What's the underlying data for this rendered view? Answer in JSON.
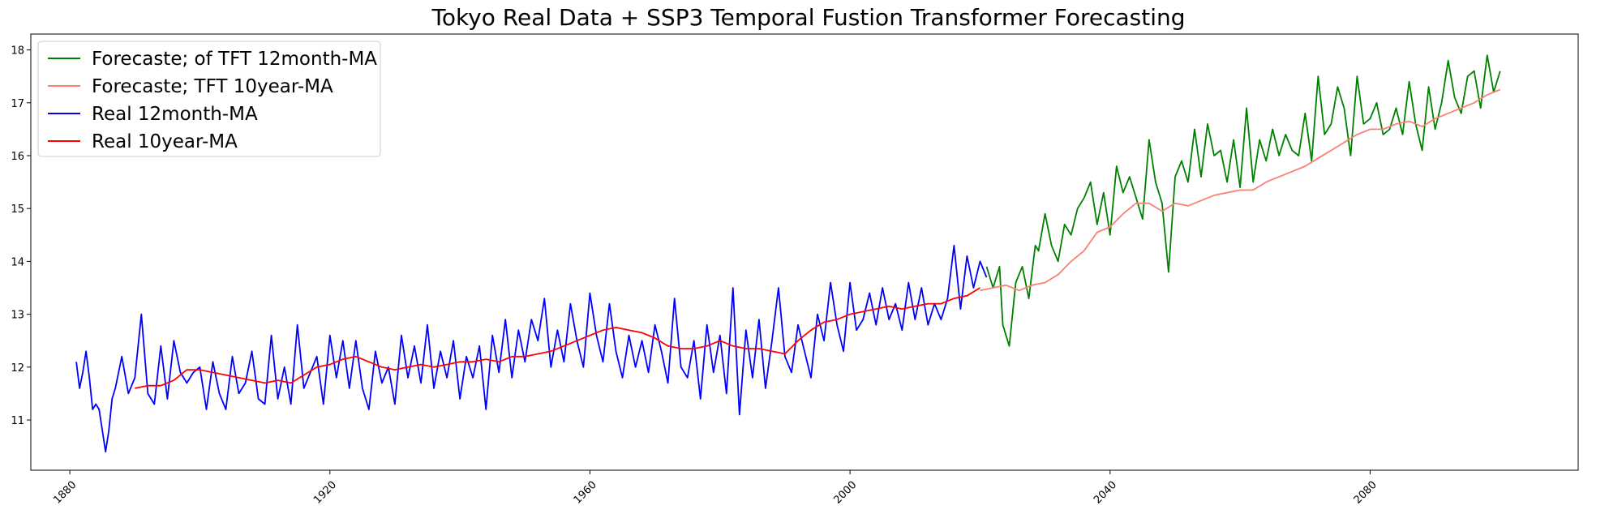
{
  "chart_data": {
    "type": "line",
    "title": "Tokyo Real Data + SSP3 Temporal Fustion Transformer Forecasting",
    "xlabel": "",
    "ylabel": "",
    "xlim": [
      1874,
      2112
    ],
    "ylim": [
      10.05,
      18.3
    ],
    "x_ticks": [
      1880,
      1920,
      1960,
      2000,
      2040,
      2080
    ],
    "x_tick_labels": [
      "1880",
      "1920",
      "1960",
      "2000",
      "2040",
      "2080"
    ],
    "y_ticks": [
      11,
      12,
      13,
      14,
      15,
      16,
      17,
      18
    ],
    "y_tick_labels": [
      "11",
      "12",
      "13",
      "14",
      "15",
      "16",
      "17",
      "18"
    ],
    "grid": false,
    "legend_position": "upper-left",
    "series": [
      {
        "name": "Forecaste; of TFT 12month-MA",
        "color": "#008000",
        "x": [
          2021.0,
          2022.0,
          2023.0,
          2023.5,
          2024.5,
          2025.5,
          2026.5,
          2027.5,
          2028.5,
          2029.0,
          2030.0,
          2031.0,
          2032.0,
          2033.0,
          2034.0,
          2035.0,
          2036.0,
          2037.0,
          2038.0,
          2039.0,
          2040.0,
          2041.0,
          2042.0,
          2043.0,
          2044.0,
          2045.0,
          2046.0,
          2047.0,
          2048.0,
          2049.0,
          2050.0,
          2051.0,
          2052.0,
          2053.0,
          2054.0,
          2055.0,
          2056.0,
          2057.0,
          2058.0,
          2059.0,
          2060.0,
          2061.0,
          2062.0,
          2063.0,
          2064.0,
          2065.0,
          2066.0,
          2067.0,
          2068.0,
          2069.0,
          2070.0,
          2071.0,
          2072.0,
          2073.0,
          2074.0,
          2075.0,
          2076.0,
          2077.0,
          2078.0,
          2079.0,
          2080.0,
          2081.0,
          2082.0,
          2083.0,
          2084.0,
          2085.0,
          2086.0,
          2087.0,
          2088.0,
          2089.0,
          2090.0,
          2091.0,
          2092.0,
          2093.0,
          2094.0,
          2095.0,
          2096.0,
          2097.0,
          2098.0,
          2099.0,
          2100.0
        ],
        "y": [
          13.9,
          13.5,
          13.9,
          12.8,
          12.4,
          13.6,
          13.9,
          13.3,
          14.3,
          14.2,
          14.9,
          14.3,
          14.0,
          14.7,
          14.5,
          15.0,
          15.2,
          15.5,
          14.7,
          15.3,
          14.5,
          15.8,
          15.3,
          15.6,
          15.2,
          14.8,
          16.3,
          15.5,
          15.1,
          13.8,
          15.6,
          15.9,
          15.5,
          16.5,
          15.6,
          16.6,
          16.0,
          16.1,
          15.5,
          16.3,
          15.4,
          16.9,
          15.5,
          16.3,
          15.9,
          16.5,
          16.0,
          16.4,
          16.1,
          16.0,
          16.8,
          15.9,
          17.5,
          16.4,
          16.6,
          17.3,
          16.9,
          16.0,
          17.5,
          16.6,
          16.7,
          17.0,
          16.4,
          16.5,
          16.9,
          16.4,
          17.4,
          16.6,
          16.1,
          17.3,
          16.5,
          17.0,
          17.8,
          17.1,
          16.8,
          17.5,
          17.6,
          16.9,
          17.9,
          17.2,
          17.6
        ]
      },
      {
        "name": "Forecaste; TFT 10year-MA",
        "color": "#fa8072",
        "x": [
          2020.0,
          2022.0,
          2024.0,
          2026.0,
          2028.0,
          2030.0,
          2032.0,
          2034.0,
          2036.0,
          2038.0,
          2040.0,
          2042.0,
          2044.0,
          2046.0,
          2048.0,
          2050.0,
          2052.0,
          2054.0,
          2056.0,
          2058.0,
          2060.0,
          2062.0,
          2064.0,
          2066.0,
          2068.0,
          2070.0,
          2072.0,
          2074.0,
          2076.0,
          2078.0,
          2080.0,
          2082.0,
          2084.0,
          2086.0,
          2088.0,
          2090.0,
          2092.0,
          2094.0,
          2096.0,
          2098.0,
          2100.0
        ],
        "y": [
          13.45,
          13.5,
          13.55,
          13.45,
          13.55,
          13.6,
          13.75,
          14.0,
          14.2,
          14.55,
          14.65,
          14.9,
          15.1,
          15.1,
          14.95,
          15.1,
          15.05,
          15.15,
          15.25,
          15.3,
          15.35,
          15.35,
          15.5,
          15.6,
          15.7,
          15.8,
          15.95,
          16.1,
          16.25,
          16.4,
          16.5,
          16.5,
          16.6,
          16.65,
          16.55,
          16.7,
          16.8,
          16.9,
          17.0,
          17.15,
          17.25
        ]
      },
      {
        "name": "Real 12month-MA",
        "color": "#0000ff",
        "x": [
          1881.0,
          1881.5,
          1882.0,
          1882.5,
          1883.0,
          1883.5,
          1884.0,
          1884.5,
          1885.0,
          1885.5,
          1886.0,
          1886.5,
          1887.0,
          1888.0,
          1889.0,
          1890.0,
          1891.0,
          1892.0,
          1893.0,
          1894.0,
          1895.0,
          1896.0,
          1897.0,
          1898.0,
          1899.0,
          1900.0,
          1901.0,
          1902.0,
          1903.0,
          1904.0,
          1905.0,
          1906.0,
          1907.0,
          1908.0,
          1909.0,
          1910.0,
          1911.0,
          1912.0,
          1913.0,
          1914.0,
          1915.0,
          1916.0,
          1917.0,
          1918.0,
          1919.0,
          1920.0,
          1921.0,
          1922.0,
          1923.0,
          1924.0,
          1925.0,
          1926.0,
          1927.0,
          1928.0,
          1929.0,
          1930.0,
          1931.0,
          1932.0,
          1933.0,
          1934.0,
          1935.0,
          1936.0,
          1937.0,
          1938.0,
          1939.0,
          1940.0,
          1941.0,
          1942.0,
          1943.0,
          1944.0,
          1945.0,
          1946.0,
          1947.0,
          1948.0,
          1949.0,
          1950.0,
          1951.0,
          1952.0,
          1953.0,
          1954.0,
          1955.0,
          1956.0,
          1957.0,
          1958.0,
          1959.0,
          1960.0,
          1961.0,
          1962.0,
          1963.0,
          1964.0,
          1965.0,
          1966.0,
          1967.0,
          1968.0,
          1969.0,
          1970.0,
          1971.0,
          1972.0,
          1973.0,
          1974.0,
          1975.0,
          1976.0,
          1977.0,
          1978.0,
          1979.0,
          1980.0,
          1981.0,
          1982.0,
          1983.0,
          1984.0,
          1985.0,
          1986.0,
          1987.0,
          1988.0,
          1989.0,
          1990.0,
          1991.0,
          1992.0,
          1993.0,
          1994.0,
          1995.0,
          1996.0,
          1997.0,
          1998.0,
          1999.0,
          2000.0,
          2001.0,
          2002.0,
          2003.0,
          2004.0,
          2005.0,
          2006.0,
          2007.0,
          2008.0,
          2009.0,
          2010.0,
          2011.0,
          2012.0,
          2013.0,
          2014.0,
          2015.0,
          2016.0,
          2017.0,
          2018.0,
          2019.0,
          2020.0,
          2021.0
        ],
        "y": [
          12.1,
          11.6,
          11.9,
          12.3,
          11.8,
          11.2,
          11.3,
          11.2,
          10.8,
          10.4,
          10.8,
          11.4,
          11.6,
          12.2,
          11.5,
          11.8,
          13.0,
          11.5,
          11.3,
          12.4,
          11.4,
          12.5,
          11.9,
          11.7,
          11.9,
          12.0,
          11.2,
          12.1,
          11.5,
          11.2,
          12.2,
          11.5,
          11.7,
          12.3,
          11.4,
          11.3,
          12.6,
          11.4,
          12.0,
          11.3,
          12.8,
          11.6,
          11.9,
          12.2,
          11.3,
          12.6,
          11.8,
          12.5,
          11.6,
          12.5,
          11.6,
          11.2,
          12.3,
          11.7,
          12.0,
          11.3,
          12.6,
          11.8,
          12.4,
          11.7,
          12.8,
          11.6,
          12.3,
          11.8,
          12.5,
          11.4,
          12.2,
          11.8,
          12.4,
          11.2,
          12.6,
          11.9,
          12.9,
          11.8,
          12.7,
          12.1,
          12.9,
          12.5,
          13.3,
          12.0,
          12.7,
          12.1,
          13.2,
          12.5,
          12.0,
          13.4,
          12.6,
          12.1,
          13.2,
          12.3,
          11.8,
          12.6,
          12.0,
          12.5,
          11.9,
          12.8,
          12.3,
          11.7,
          13.3,
          12.0,
          11.8,
          12.5,
          11.4,
          12.8,
          11.9,
          12.6,
          11.5,
          13.5,
          11.1,
          12.7,
          11.8,
          12.9,
          11.6,
          12.5,
          13.5,
          12.2,
          11.9,
          12.8,
          12.3,
          11.8,
          13.0,
          12.5,
          13.6,
          12.8,
          12.3,
          13.6,
          12.7,
          12.9,
          13.4,
          12.8,
          13.5,
          12.9,
          13.2,
          12.7,
          13.6,
          12.9,
          13.5,
          12.8,
          13.2,
          12.9,
          13.3,
          14.3,
          13.1,
          14.1,
          13.5,
          14.0,
          13.7
        ]
      },
      {
        "name": "Real 10year-MA",
        "color": "#ff0000",
        "x": [
          1890.0,
          1892.0,
          1894.0,
          1896.0,
          1898.0,
          1900.0,
          1902.0,
          1904.0,
          1906.0,
          1908.0,
          1910.0,
          1912.0,
          1914.0,
          1916.0,
          1918.0,
          1920.0,
          1922.0,
          1924.0,
          1926.0,
          1928.0,
          1930.0,
          1932.0,
          1934.0,
          1936.0,
          1938.0,
          1940.0,
          1942.0,
          1944.0,
          1946.0,
          1948.0,
          1950.0,
          1952.0,
          1954.0,
          1956.0,
          1958.0,
          1960.0,
          1962.0,
          1964.0,
          1966.0,
          1968.0,
          1970.0,
          1972.0,
          1974.0,
          1976.0,
          1978.0,
          1980.0,
          1982.0,
          1984.0,
          1986.0,
          1988.0,
          1990.0,
          1992.0,
          1994.0,
          1996.0,
          1998.0,
          2000.0,
          2002.0,
          2004.0,
          2006.0,
          2008.0,
          2010.0,
          2012.0,
          2014.0,
          2016.0,
          2018.0,
          2020.0
        ],
        "y": [
          11.6,
          11.65,
          11.65,
          11.75,
          11.95,
          11.95,
          11.9,
          11.85,
          11.8,
          11.75,
          11.7,
          11.75,
          11.7,
          11.85,
          12.0,
          12.05,
          12.15,
          12.2,
          12.1,
          12.0,
          11.95,
          12.0,
          12.05,
          12.0,
          12.05,
          12.1,
          12.1,
          12.15,
          12.1,
          12.2,
          12.2,
          12.25,
          12.3,
          12.4,
          12.5,
          12.6,
          12.7,
          12.75,
          12.7,
          12.65,
          12.55,
          12.4,
          12.35,
          12.35,
          12.4,
          12.5,
          12.4,
          12.35,
          12.35,
          12.3,
          12.25,
          12.5,
          12.7,
          12.85,
          12.9,
          13.0,
          13.05,
          13.1,
          13.15,
          13.1,
          13.15,
          13.2,
          13.2,
          13.3,
          13.35,
          13.5
        ]
      }
    ]
  }
}
